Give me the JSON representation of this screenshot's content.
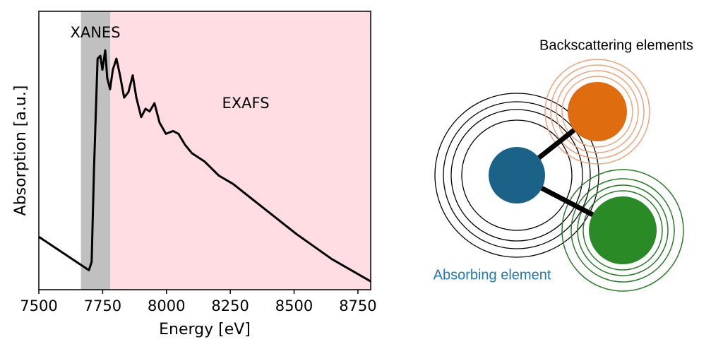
{
  "chart_data": {
    "type": "line",
    "xlabel": "Energy [eV]",
    "ylabel": "Absorption [a.u.]",
    "xlim": [
      7500,
      8800
    ],
    "ylim": [
      0,
      1
    ],
    "xticks": [
      7500,
      7750,
      8000,
      8250,
      8500,
      8750
    ],
    "regions": [
      {
        "label": "XANES",
        "start": 7665,
        "end": 7780,
        "color": "#c0c0c0"
      },
      {
        "label": "EXAFS",
        "start": 7780,
        "end": 8800,
        "color": "#ffdde3"
      }
    ],
    "x": [
      7500,
      7696,
      7707,
      7716,
      7730,
      7741,
      7749,
      7760,
      7768,
      7779,
      7790,
      7804,
      7818,
      7834,
      7851,
      7868,
      7882,
      7901,
      7918,
      7934,
      7953,
      7973,
      7998,
      8026,
      8047,
      8073,
      8100,
      8150,
      8205,
      8261,
      8371,
      8509,
      8648,
      8800
    ],
    "series": [
      {
        "color": "#000000",
        "values": [
          0.19,
          0.07,
          0.1,
          0.43,
          0.83,
          0.84,
          0.79,
          0.86,
          0.76,
          0.72,
          0.79,
          0.83,
          0.77,
          0.69,
          0.71,
          0.77,
          0.69,
          0.62,
          0.65,
          0.64,
          0.67,
          0.6,
          0.56,
          0.57,
          0.56,
          0.52,
          0.49,
          0.46,
          0.41,
          0.38,
          0.3,
          0.2,
          0.11,
          0.03
        ]
      }
    ]
  },
  "diagram": {
    "backscattering_label": "Backscattering elements",
    "absorbing_label": "Absorbing element"
  }
}
